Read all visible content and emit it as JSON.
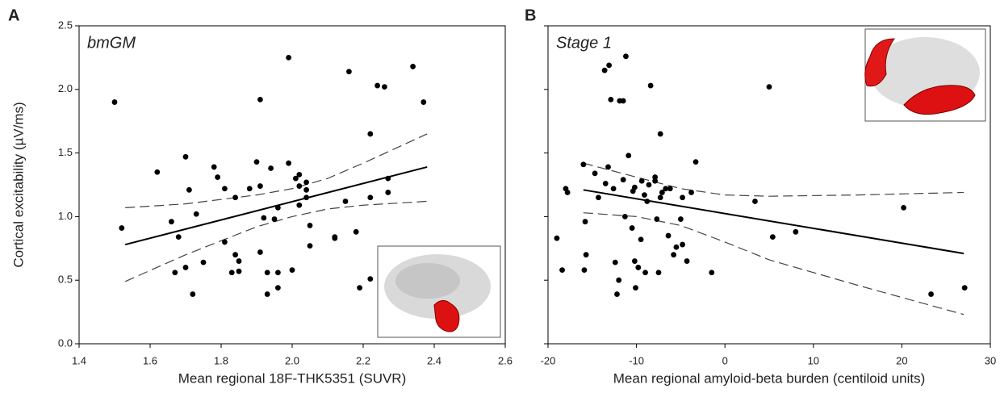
{
  "chart_data": [
    {
      "type": "scatter",
      "panel": "A",
      "title": "bmGM",
      "xlabel": "Mean regional 18F-THK5351 (SUVR)",
      "ylabel": "Cortical excitability (µV/ms)",
      "color": "#000000",
      "xlim": [
        1.4,
        2.6
      ],
      "ylim": [
        0,
        2.5
      ],
      "xticks": [
        1.4,
        1.6,
        1.8,
        {
          "value": 2,
          "label": "2.0"
        },
        2.2,
        2.4,
        2.6
      ],
      "yticks": [
        {
          "value": 0,
          "label": "0.0"
        },
        0.5,
        {
          "value": 1,
          "label": "1.0"
        },
        1.5,
        {
          "value": 2,
          "label": "2.0"
        },
        2.5
      ],
      "x": [
        1.5,
        1.52,
        1.62,
        1.66,
        1.67,
        1.68,
        1.7,
        1.71,
        1.7,
        1.72,
        1.73,
        1.75,
        1.78,
        1.79,
        1.81,
        1.81,
        1.83,
        1.84,
        1.84,
        1.85,
        1.85,
        1.88,
        1.9,
        1.91,
        1.91,
        1.92,
        1.91,
        1.93,
        1.93,
        1.94,
        1.95,
        1.96,
        1.96,
        1.96,
        1.99,
        1.99,
        2.0,
        2.01,
        2.02,
        2.02,
        2.02,
        2.04,
        2.04,
        2.04,
        2.05,
        2.05,
        2.12,
        2.12,
        2.16,
        2.15,
        2.18,
        2.19,
        2.22,
        2.22,
        2.24,
        2.26,
        2.27,
        2.27,
        2.22,
        2.34,
        2.37
      ],
      "y": [
        1.9,
        0.91,
        1.35,
        0.96,
        0.56,
        0.84,
        1.47,
        1.21,
        0.6,
        0.39,
        1.02,
        0.64,
        1.39,
        1.31,
        0.8,
        1.22,
        0.56,
        1.15,
        0.7,
        0.65,
        0.57,
        1.22,
        1.43,
        1.92,
        1.24,
        0.99,
        0.72,
        0.56,
        0.39,
        1.38,
        0.98,
        0.56,
        0.44,
        1.07,
        2.25,
        1.42,
        0.58,
        1.3,
        1.33,
        1.09,
        1.24,
        1.27,
        1.21,
        1.15,
        0.93,
        0.77,
        0.84,
        0.83,
        2.14,
        1.12,
        0.88,
        0.44,
        1.65,
        1.15,
        2.03,
        2.02,
        1.19,
        1.3,
        0.51,
        2.18,
        1.9
      ],
      "fit": {
        "x": [
          1.53,
          2.38
        ],
        "y": [
          0.78,
          1.39
        ]
      },
      "band": {
        "x": [
          1.53,
          1.7,
          1.9,
          2.0,
          2.1,
          2.2,
          2.38
        ],
        "upper": [
          1.07,
          1.1,
          1.17,
          1.22,
          1.3,
          1.42,
          1.65
        ],
        "lower": [
          0.49,
          0.7,
          0.92,
          1.0,
          1.06,
          1.09,
          1.12
        ]
      }
    },
    {
      "type": "scatter",
      "panel": "B",
      "title": "Stage 1",
      "xlabel": "Mean regional amyloid-beta burden (centiloid units)",
      "color": "#000000",
      "xlim": [
        -20,
        30
      ],
      "ylim": [
        0,
        2.5
      ],
      "xticks": [
        -20,
        -10,
        0,
        10,
        20,
        30
      ],
      "yticks": [
        0,
        0.5,
        1,
        1.5,
        2,
        2.5
      ],
      "x": [
        -19,
        -18.4,
        -18,
        -17.8,
        -16,
        -15.9,
        -15.7,
        -15.8,
        -14.7,
        -14.3,
        -13.5,
        -13.6,
        -13.2,
        -12.9,
        -13.1,
        -12.6,
        -12.4,
        -12.2,
        -12,
        -11.9,
        -11.5,
        -11.5,
        -11.2,
        -10.9,
        -11.3,
        -10.5,
        -10.4,
        -10.2,
        -10.2,
        -10.1,
        -9.8,
        -9.5,
        -9.4,
        -9.1,
        -9,
        -8.6,
        -8.8,
        -8.4,
        -7.9,
        -7.9,
        -7.7,
        -7.5,
        -7.3,
        -7.3,
        -7.1,
        -6.7,
        -6.4,
        -6.2,
        -5.8,
        -5.5,
        -5,
        -4.8,
        -4.8,
        -4.3,
        -3.8,
        -3.3,
        -1.5,
        3.4,
        5,
        5.4,
        8,
        20.2,
        23.3,
        27.1
      ],
      "y": [
        0.83,
        0.58,
        1.22,
        1.19,
        1.41,
        0.58,
        0.7,
        0.96,
        1.34,
        1.15,
        1.26,
        2.15,
        1.39,
        1.92,
        2.19,
        1.22,
        0.64,
        0.39,
        0.5,
        1.91,
        1.91,
        1.29,
        2.26,
        1.48,
        1.0,
        0.91,
        1.2,
        1.23,
        0.65,
        0.44,
        0.6,
        0.82,
        1.28,
        1.17,
        0.56,
        1.25,
        1.12,
        2.03,
        1.31,
        1.28,
        0.98,
        0.56,
        1.15,
        1.65,
        1.19,
        1.22,
        0.85,
        1.22,
        0.7,
        0.76,
        0.98,
        1.15,
        0.78,
        0.65,
        1.19,
        1.43,
        0.56,
        1.12,
        2.02,
        0.84,
        0.88,
        1.07,
        0.39,
        0.44
      ],
      "fit": {
        "x": [
          -16,
          27
        ],
        "y": [
          1.21,
          0.71
        ]
      },
      "band": {
        "x": [
          -16,
          -10,
          -5,
          0,
          5,
          15,
          27
        ],
        "upper": [
          1.42,
          1.31,
          1.22,
          1.17,
          1.16,
          1.17,
          1.19
        ],
        "lower": [
          1.03,
          1.0,
          0.93,
          0.8,
          0.66,
          0.46,
          0.23
        ]
      }
    }
  ]
}
